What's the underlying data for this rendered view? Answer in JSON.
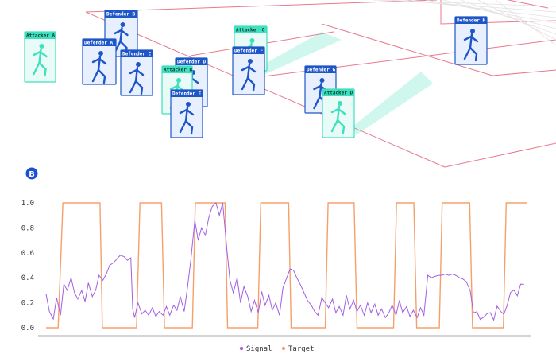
{
  "colors": {
    "defender": "#1e56c8",
    "defender_fill": "#e8f0ff",
    "attacker": "#3ee0bd",
    "attacker_fill": "#e9fbf6",
    "field_line": "#e8798e",
    "signal": "#a35ee6",
    "target": "#f5a06b",
    "badge": "#1a4fd6"
  },
  "players": [
    {
      "label": "Attacker A",
      "team": "attacker",
      "icon": "runner-icon"
    },
    {
      "label": "Defender B",
      "team": "defender",
      "icon": "runner-icon"
    },
    {
      "label": "Defender A",
      "team": "defender",
      "icon": "runner-icon"
    },
    {
      "label": "Defender C",
      "team": "defender",
      "icon": "runner-icon"
    },
    {
      "label": "Defender D",
      "team": "defender",
      "icon": "runner-icon"
    },
    {
      "label": "Attacker B",
      "team": "attacker",
      "icon": "runner-icon"
    },
    {
      "label": "Defender E",
      "team": "defender",
      "icon": "runner-icon"
    },
    {
      "label": "Attacker C",
      "team": "attacker",
      "icon": "runner-icon"
    },
    {
      "label": "Defender F",
      "team": "defender",
      "icon": "runner-icon"
    },
    {
      "label": "Defender G",
      "team": "defender",
      "icon": "runner-icon"
    },
    {
      "label": "Attacker D",
      "team": "attacker",
      "icon": "runner-icon"
    },
    {
      "label": "Defender H",
      "team": "defender",
      "icon": "runner-icon"
    }
  ],
  "panel_b": {
    "badge": "B"
  },
  "chart_data": {
    "type": "line",
    "x_range": [
      0,
      100
    ],
    "ylim": [
      0,
      1.0
    ],
    "yticks": [
      "1.0",
      "0.8",
      "0.6",
      "0.4",
      "0.2",
      "0.0"
    ],
    "ytick_values": [
      1.0,
      0.8,
      0.6,
      0.4,
      0.2,
      0.0
    ],
    "grid": false,
    "legend_position": "bottom-center",
    "series": [
      {
        "name": "Signal",
        "color": "#a35ee6",
        "points": [
          [
            0.0,
            0.27
          ],
          [
            0.7,
            0.13
          ],
          [
            1.5,
            0.07
          ],
          [
            2.2,
            0.24
          ],
          [
            3.0,
            0.1
          ],
          [
            3.7,
            0.35
          ],
          [
            4.4,
            0.3
          ],
          [
            5.2,
            0.4
          ],
          [
            5.9,
            0.28
          ],
          [
            6.6,
            0.23
          ],
          [
            7.4,
            0.3
          ],
          [
            8.1,
            0.21
          ],
          [
            8.8,
            0.36
          ],
          [
            9.6,
            0.25
          ],
          [
            10.3,
            0.3
          ],
          [
            11.0,
            0.42
          ],
          [
            11.8,
            0.38
          ],
          [
            12.5,
            0.43
          ],
          [
            13.2,
            0.5
          ],
          [
            14.0,
            0.52
          ],
          [
            14.7,
            0.55
          ],
          [
            15.4,
            0.58
          ],
          [
            16.2,
            0.57
          ],
          [
            16.9,
            0.54
          ],
          [
            17.6,
            0.56
          ],
          [
            18.0,
            0.15
          ],
          [
            18.4,
            0.08
          ],
          [
            19.1,
            0.2
          ],
          [
            19.9,
            0.11
          ],
          [
            20.6,
            0.14
          ],
          [
            21.3,
            0.1
          ],
          [
            22.1,
            0.16
          ],
          [
            22.8,
            0.09
          ],
          [
            23.5,
            0.13
          ],
          [
            24.3,
            0.1
          ],
          [
            25.0,
            0.17
          ],
          [
            25.7,
            0.1
          ],
          [
            26.5,
            0.18
          ],
          [
            27.2,
            0.14
          ],
          [
            27.9,
            0.25
          ],
          [
            28.7,
            0.13
          ],
          [
            29.4,
            0.33
          ],
          [
            30.1,
            0.55
          ],
          [
            30.9,
            0.86
          ],
          [
            31.6,
            0.7
          ],
          [
            32.3,
            0.8
          ],
          [
            33.1,
            0.74
          ],
          [
            33.8,
            0.88
          ],
          [
            34.5,
            0.97
          ],
          [
            35.3,
            1.0
          ],
          [
            36.0,
            0.9
          ],
          [
            36.7,
            1.0
          ],
          [
            37.5,
            0.65
          ],
          [
            38.2,
            0.38
          ],
          [
            38.9,
            0.28
          ],
          [
            39.7,
            0.4
          ],
          [
            40.4,
            0.2
          ],
          [
            41.1,
            0.33
          ],
          [
            41.9,
            0.25
          ],
          [
            42.6,
            0.13
          ],
          [
            43.3,
            0.22
          ],
          [
            44.1,
            0.12
          ],
          [
            44.8,
            0.29
          ],
          [
            45.5,
            0.18
          ],
          [
            46.3,
            0.26
          ],
          [
            47.0,
            0.14
          ],
          [
            47.7,
            0.2
          ],
          [
            48.5,
            0.1
          ],
          [
            49.2,
            0.32
          ],
          [
            49.9,
            0.39
          ],
          [
            50.7,
            0.47
          ],
          [
            51.4,
            0.46
          ],
          [
            52.1,
            0.4
          ],
          [
            52.9,
            0.34
          ],
          [
            53.6,
            0.28
          ],
          [
            54.3,
            0.22
          ],
          [
            55.1,
            0.18
          ],
          [
            55.8,
            0.13
          ],
          [
            56.5,
            0.1
          ],
          [
            57.3,
            0.24
          ],
          [
            58.0,
            0.2
          ],
          [
            58.7,
            0.16
          ],
          [
            59.5,
            0.23
          ],
          [
            60.2,
            0.12
          ],
          [
            60.9,
            0.17
          ],
          [
            61.7,
            0.1
          ],
          [
            62.4,
            0.26
          ],
          [
            63.1,
            0.15
          ],
          [
            63.9,
            0.22
          ],
          [
            64.6,
            0.13
          ],
          [
            65.3,
            0.18
          ],
          [
            66.1,
            0.1
          ],
          [
            66.8,
            0.2
          ],
          [
            67.5,
            0.12
          ],
          [
            68.3,
            0.19
          ],
          [
            69.0,
            0.1
          ],
          [
            69.7,
            0.15
          ],
          [
            70.5,
            0.08
          ],
          [
            71.2,
            0.12
          ],
          [
            71.9,
            0.18
          ],
          [
            72.7,
            0.1
          ],
          [
            73.4,
            0.22
          ],
          [
            74.1,
            0.12
          ],
          [
            74.9,
            0.17
          ],
          [
            75.6,
            0.09
          ],
          [
            76.3,
            0.14
          ],
          [
            77.1,
            0.08
          ],
          [
            77.8,
            0.16
          ],
          [
            78.5,
            0.1
          ],
          [
            79.3,
            0.42
          ],
          [
            80.0,
            0.4
          ],
          [
            80.7,
            0.41
          ],
          [
            81.5,
            0.42
          ],
          [
            82.2,
            0.42
          ],
          [
            82.9,
            0.43
          ],
          [
            83.7,
            0.42
          ],
          [
            84.4,
            0.43
          ],
          [
            85.1,
            0.42
          ],
          [
            85.9,
            0.4
          ],
          [
            86.6,
            0.39
          ],
          [
            87.3,
            0.37
          ],
          [
            88.1,
            0.3
          ]
        ],
        "note": "sampled signal trace"
      },
      {
        "name": "Target",
        "color": "#f5a06b",
        "segments": [
          [
            0.0,
            0
          ],
          [
            2.5,
            0
          ],
          [
            3.5,
            1
          ],
          [
            11.2,
            1
          ],
          [
            11.7,
            0
          ],
          [
            18.8,
            0
          ],
          [
            19.5,
            1
          ],
          [
            24.0,
            1
          ],
          [
            24.6,
            0
          ],
          [
            30.4,
            0
          ],
          [
            31.0,
            1
          ],
          [
            37.2,
            1
          ],
          [
            37.7,
            0
          ],
          [
            44.0,
            0
          ],
          [
            44.6,
            1
          ],
          [
            50.4,
            1
          ],
          [
            50.9,
            0
          ],
          [
            58.0,
            0
          ],
          [
            58.6,
            1
          ],
          [
            64.0,
            1
          ],
          [
            64.6,
            0
          ],
          [
            72.2,
            0
          ],
          [
            72.8,
            1
          ],
          [
            76.4,
            1
          ],
          [
            77.0,
            0
          ],
          [
            81.7,
            0
          ],
          [
            82.3,
            1
          ],
          [
            88.0,
            1
          ],
          [
            88.6,
            0
          ],
          [
            95.0,
            0
          ],
          [
            95.6,
            1
          ],
          [
            100,
            1
          ]
        ]
      }
    ]
  }
}
